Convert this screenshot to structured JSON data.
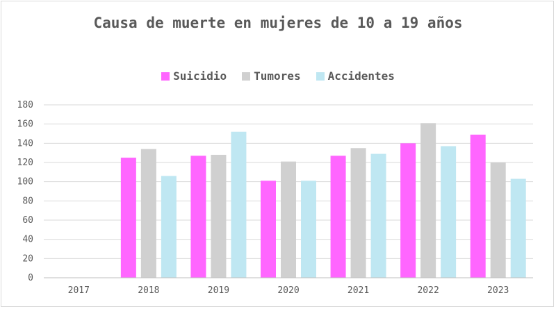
{
  "chart_data": {
    "type": "bar",
    "title": "Causa de muerte en mujeres de 10 a 19 años",
    "categories": [
      "2017",
      "2018",
      "2019",
      "2020",
      "2021",
      "2022",
      "2023"
    ],
    "series": [
      {
        "name": "Suicidio",
        "color": "#ff66ff",
        "values": [
          0,
          125,
          127,
          101,
          127,
          140,
          149
        ]
      },
      {
        "name": "Tumores",
        "color": "#d0d0d0",
        "values": [
          0,
          134,
          128,
          121,
          135,
          161,
          120
        ]
      },
      {
        "name": "Accidentes",
        "color": "#bfe7f2",
        "values": [
          0,
          106,
          152,
          101,
          129,
          137,
          103
        ]
      }
    ],
    "ylim": [
      0,
      180
    ],
    "yticks": [
      "0",
      "20",
      "40",
      "60",
      "80",
      "100",
      "120",
      "140",
      "160",
      "180"
    ],
    "grid": true,
    "legend_position": "top"
  }
}
